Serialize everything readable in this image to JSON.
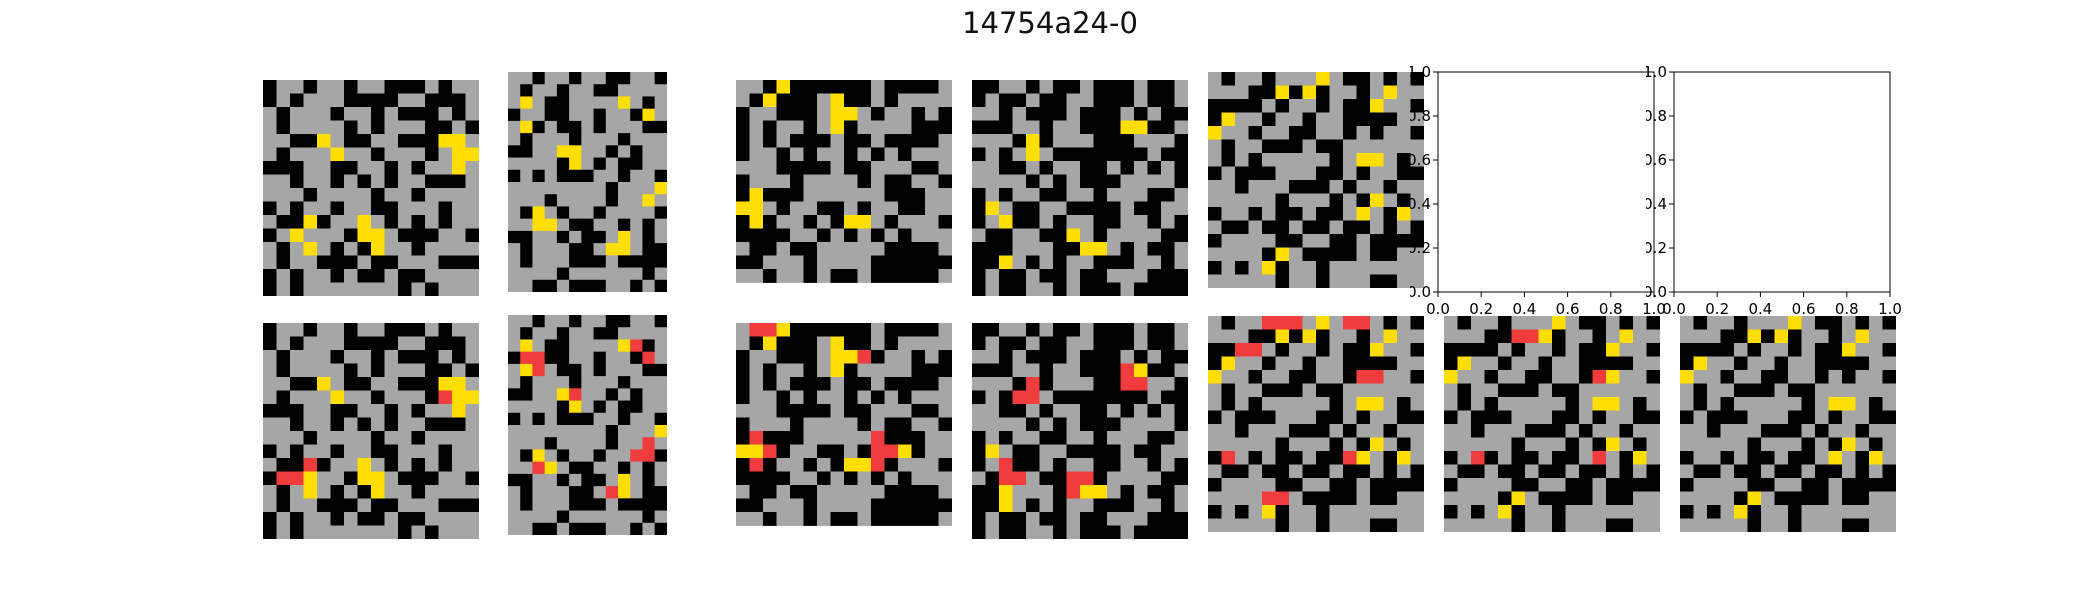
{
  "title": "14754a24-0",
  "palette": {
    "0": "#000000",
    "5": "#a6a6a6",
    "4": "#ffde00",
    "2": "#f03c3c"
  },
  "grids": {
    "train_1_input": [
      "0550550550005055",
      "0505550000550005",
      "5055505505000505",
      "5055550505550050",
      "5500450055000445",
      "5055545505550544",
      "0005500550505545",
      "5505505050550005",
      "5550555505505555",
      "0505505500555055",
      "5004055450505055",
      "0545550445000550",
      "5054505045505555",
      "5055000500555000",
      "0505505005005555",
      "0505555555050555"
    ],
    "train_1_output": [
      "0550550550005055",
      "0505550000550005",
      "5055505505000505",
      "5055550505550050",
      "5500450055000445",
      "5055545505550244",
      "0005500550505545",
      "5505505050550005",
      "5550555505505555",
      "0505505500555055",
      "5002055450505055",
      "0224550445000550",
      "5054505045505555",
      "5055000500555000",
      "0505505005005555",
      "0505555555050555"
    ],
    "train_2_input": [
      "5505505500550",
      "5055055005555",
      "5450055554505",
      "0550055055045",
      "5405005055500",
      "5055505550555",
      "0055445505055",
      "5555045050055",
      "0505000550550",
      "5555555505554",
      "5550555505545",
      "5045055055550",
      "5544500550505",
      "0055050054505",
      "5055500544500",
      "5055500050000",
      "5555055555505",
      "5500500055050"
    ],
    "train_2_output": [
      "5505505500550",
      "5055055005555",
      "5450055554205",
      "0220055055025",
      "5425005055500",
      "5055505550555",
      "0055425505055",
      "5555045050055",
      "0505000550550",
      "5555555505554",
      "5550555505525",
      "5045055055220",
      "5524500550505",
      "0055050054505",
      "5055500524500",
      "5055500050000",
      "5555055555505",
      "5500500055050"
    ],
    "train_3_input": [
      "5504000000500005",
      "5040005400505555",
      "0550005445055050",
      "0505505405555000",
      "0505000500500005",
      "0550505505050555",
      "5550000500555005",
      "0555055550500550",
      "0400055555500055",
      "4450550050550055",
      "0405505044505550",
      "0000550505050555",
      "5005005555500005",
      "0055505555000000",
      "5505505005000005"
    ],
    "train_3_output": [
      "5224000000500005",
      "5040005400505555",
      "0550005442055050",
      "0505505405555000",
      "0505000500500005",
      "0550505505050555",
      "5550000500555005",
      "0555055550500550",
      "0200055555200055",
      "4420550050224055",
      "0205505044205550",
      "0000550505050555",
      "5005005555500005",
      "0055505555000000",
      "5505505005000005"
    ],
    "train_4_input": [
      "0055050050005005",
      "0500500550005005",
      "5505000500050500",
      "0005505500044005",
      "5550405550005550",
      "0505450000000500",
      "5500505500505050",
      "5555050500055550",
      "0505500550555005",
      "0450055000050055",
      "0540050550055050",
      "5005500450555500",
      "0005550044505005",
      "0045050550005505",
      "0500500500555000",
      "0500550500050000"
    ],
    "train_4_output": [
      "0055050050005005",
      "0500500550005005",
      "5505000500050500",
      "0005505500024005",
      "5550205550022550",
      "0502250000000500",
      "5500505500505050",
      "5555050500055550",
      "0505500550555005",
      "0450055000050055",
      "0520050550055050",
      "5022500220555500",
      "0045550244505005",
      "0045050550005505",
      "0500500500555000",
      "0500550500050000"
    ],
    "test_input": [
      "5055055545005050",
      "5550040405505455",
      "0000505505004550",
      "0455055055000055",
      "4550550055050550",
      "5055000500555555",
      "5050555550544505",
      "0500055500505500",
      "5505550005055055",
      "5555505550504505",
      "0550500500545045",
      "5005005005005050",
      "0555500550050000",
      "5555045000050055",
      "0505405505555555",
      "5555505505550055"
    ],
    "test_output": [
      "5055222545225050",
      "5550040405505455",
      "0022505505004550",
      "0455055055000055",
      "4550550055022550",
      "5055000500555555",
      "5050555550544505",
      "0500055500505500",
      "5505550005055055",
      "5555505550504505",
      "0250500500245045",
      "5005005005005050",
      "0555500550050000",
      "5555225000050055",
      "0505405505555555",
      "5555505505550055"
    ],
    "test_2_output": [
      "5055055545005050",
      "5550022405505455",
      "0000505505004550",
      "0455055055000055",
      "4550550055024550",
      "5055000500555555",
      "5050555550544505",
      "0500055500505500",
      "5505550005055055",
      "5555505550504505",
      "0520500500525045",
      "5005005005005050",
      "0555500550050000",
      "5555045000050055",
      "0505405505555555",
      "5555505505550055"
    ],
    "test_3_output": [
      "5055055545005050",
      "5550040405505455",
      "0000505505004550",
      "0455055055000055",
      "4550550055050550",
      "5055000500555555",
      "5050555550544505",
      "0500055500505500",
      "5505550005055055",
      "5555505550504505",
      "0550500500545045",
      "5005005005005050",
      "0555500550050000",
      "5555045000050055",
      "0505405505555555",
      "5555505505550055"
    ]
  },
  "empty_axes": {
    "xticks": [
      "0.0",
      "0.2",
      "0.4",
      "0.6",
      "0.8",
      "1.0"
    ],
    "yticks": [
      "0.0",
      "0.2",
      "0.4",
      "0.6",
      "0.8",
      "1.0"
    ]
  }
}
